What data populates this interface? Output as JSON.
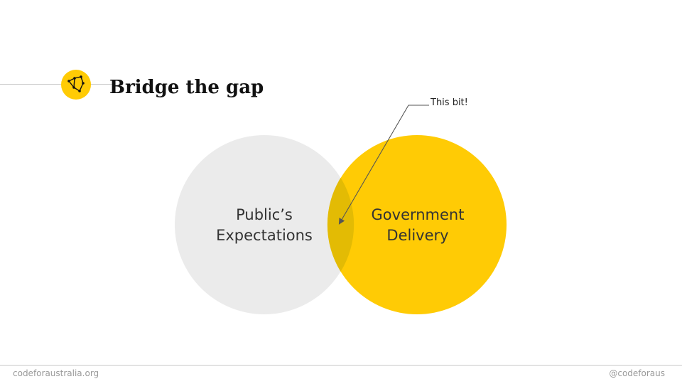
{
  "slide": {
    "title": "Bridge the gap",
    "logo_icon": "constellation-icon"
  },
  "venn": {
    "left_label_line1": "Public’s",
    "left_label_line2": "Expectations",
    "right_label_line1": "Government",
    "right_label_line2": "Delivery",
    "callout": "This bit!",
    "colors": {
      "left_circle": "#ebebeb",
      "right_circle": "#ffcb05",
      "overlap": "#e3bb04",
      "accent": "#ffcb05"
    }
  },
  "footer": {
    "left": "codeforaustralia.org",
    "right": "@codeforaus"
  }
}
